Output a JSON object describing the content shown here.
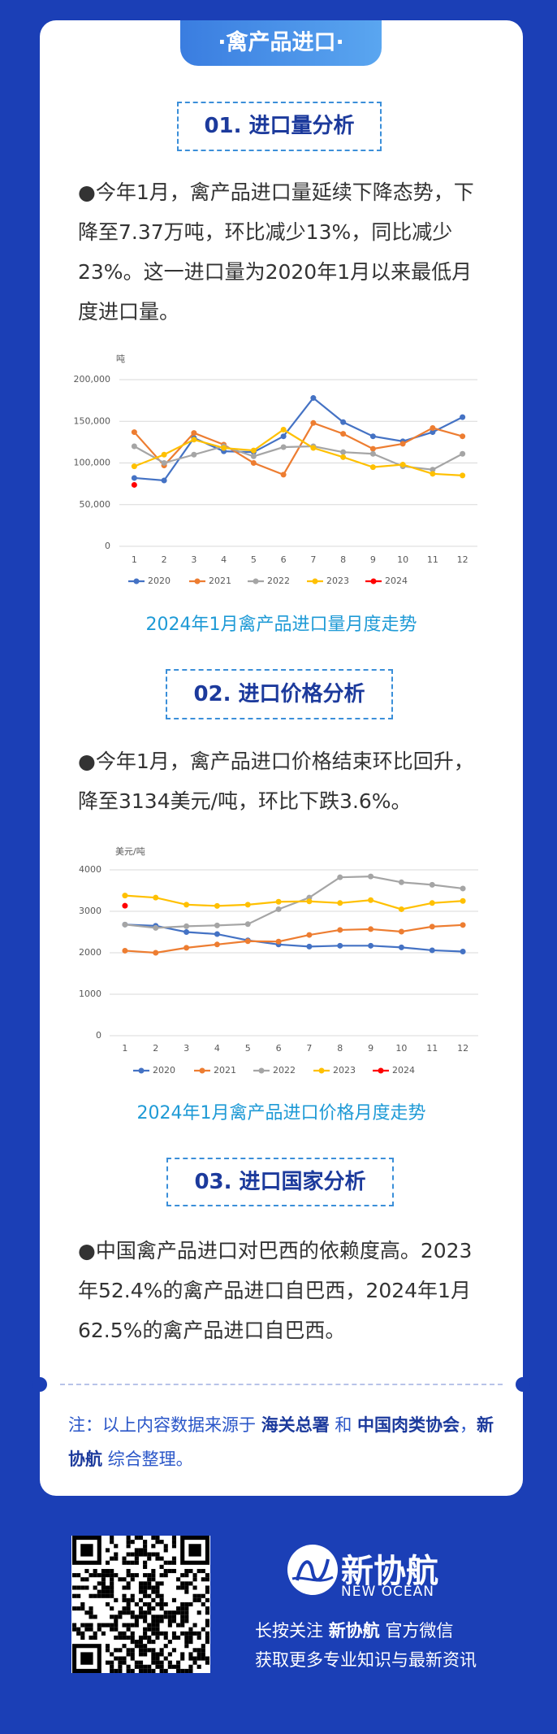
{
  "header": {
    "title": "·禽产品进口·"
  },
  "sections": [
    {
      "heading": "01. 进口量分析",
      "text": "●今年1月，禽产品进口量延续下降态势，下降至7.37万吨，环比减少13%，同比减少23%。这一进口量为2020年1月以来最低月度进口量。",
      "caption": "2024年1月禽产品进口量月度走势"
    },
    {
      "heading": "02. 进口价格分析",
      "text": "●今年1月，禽产品进口价格结束环比回升，降至3134美元/吨，环比下跌3.6%。",
      "caption": "2024年1月禽产品进口价格月度走势"
    },
    {
      "heading": "03. 进口国家分析",
      "text": "●中国禽产品进口对巴西的依赖度高。2023年52.4%的禽产品进口自巴西，2024年1月62.5%的禽产品进口自巴西。"
    }
  ],
  "chart_data": [
    {
      "type": "line",
      "y_label": "吨",
      "categories": [
        "1",
        "2",
        "3",
        "4",
        "5",
        "6",
        "7",
        "8",
        "9",
        "10",
        "11",
        "12"
      ],
      "series": [
        {
          "name": "2020",
          "color": "#4472c4",
          "values": [
            82000,
            79000,
            130000,
            114000,
            113000,
            132000,
            178000,
            149000,
            132000,
            126000,
            137000,
            155000
          ]
        },
        {
          "name": "2021",
          "color": "#ed7d31",
          "values": [
            137000,
            97000,
            136000,
            122000,
            100000,
            86000,
            148000,
            135000,
            117000,
            123000,
            142000,
            132000
          ]
        },
        {
          "name": "2022",
          "color": "#a5a5a5",
          "values": [
            120000,
            100000,
            110000,
            120000,
            108000,
            119000,
            120000,
            113000,
            111000,
            96000,
            92000,
            111000
          ]
        },
        {
          "name": "2023",
          "color": "#ffc000",
          "values": [
            96000,
            110000,
            128000,
            118000,
            115000,
            140000,
            118000,
            107000,
            95000,
            98000,
            87000,
            85000
          ]
        },
        {
          "name": "2024",
          "color": "#ff0000",
          "values": [
            73700,
            null,
            null,
            null,
            null,
            null,
            null,
            null,
            null,
            null,
            null,
            null
          ]
        }
      ],
      "ylim": [
        0,
        200000
      ],
      "yticks": [
        0,
        {
          "value": 50000,
          "label": "50,000"
        },
        {
          "value": 100000,
          "label": "100,000"
        },
        {
          "value": 150000,
          "label": "150,000"
        },
        {
          "value": 200000,
          "label": "200,000"
        }
      ],
      "grid": true,
      "legend": "bottom"
    },
    {
      "type": "line",
      "y_label": "美元/吨",
      "categories": [
        "1",
        "2",
        "3",
        "4",
        "5",
        "6",
        "7",
        "8",
        "9",
        "10",
        "11",
        "12"
      ],
      "series": [
        {
          "name": "2020",
          "color": "#4472c4",
          "values": [
            2680,
            2650,
            2500,
            2450,
            2300,
            2200,
            2150,
            2170,
            2170,
            2130,
            2060,
            2030
          ]
        },
        {
          "name": "2021",
          "color": "#ed7d31",
          "values": [
            2050,
            2000,
            2120,
            2200,
            2280,
            2270,
            2430,
            2550,
            2570,
            2510,
            2630,
            2670
          ]
        },
        {
          "name": "2022",
          "color": "#a5a5a5",
          "values": [
            2680,
            2600,
            2640,
            2660,
            2690,
            3050,
            3330,
            3820,
            3840,
            3700,
            3640,
            3550
          ]
        },
        {
          "name": "2023",
          "color": "#ffc000",
          "values": [
            3380,
            3330,
            3160,
            3130,
            3160,
            3230,
            3240,
            3200,
            3270,
            3050,
            3200,
            3250
          ]
        },
        {
          "name": "2024",
          "color": "#ff0000",
          "values": [
            3134,
            null,
            null,
            null,
            null,
            null,
            null,
            null,
            null,
            null,
            null,
            null
          ]
        }
      ],
      "ylim": [
        0,
        4000
      ],
      "yticks": [
        0,
        1000,
        2000,
        3000,
        4000
      ],
      "grid": true,
      "legend": "bottom"
    }
  ],
  "note": [
    {
      "text": "注：以上内容数据来源于 ",
      "strong": false
    },
    {
      "text": "海关总署",
      "strong": true
    },
    {
      "text": " 和 ",
      "strong": false
    },
    {
      "text": "中国肉类协会",
      "strong": true
    },
    {
      "text": "，",
      "strong": false
    },
    {
      "text": "新协航",
      "strong": true
    },
    {
      "text": " 综合整理。",
      "strong": false
    }
  ],
  "footer": {
    "brand": "新协航",
    "brand_en": "NEW OCEAN",
    "line1": [
      {
        "text": "长按关注 ",
        "strong": false
      },
      {
        "text": "新协航",
        "strong": true
      },
      {
        "text": " 官方微信",
        "strong": false
      }
    ],
    "line2": "获取更多专业知识与最新资讯"
  }
}
